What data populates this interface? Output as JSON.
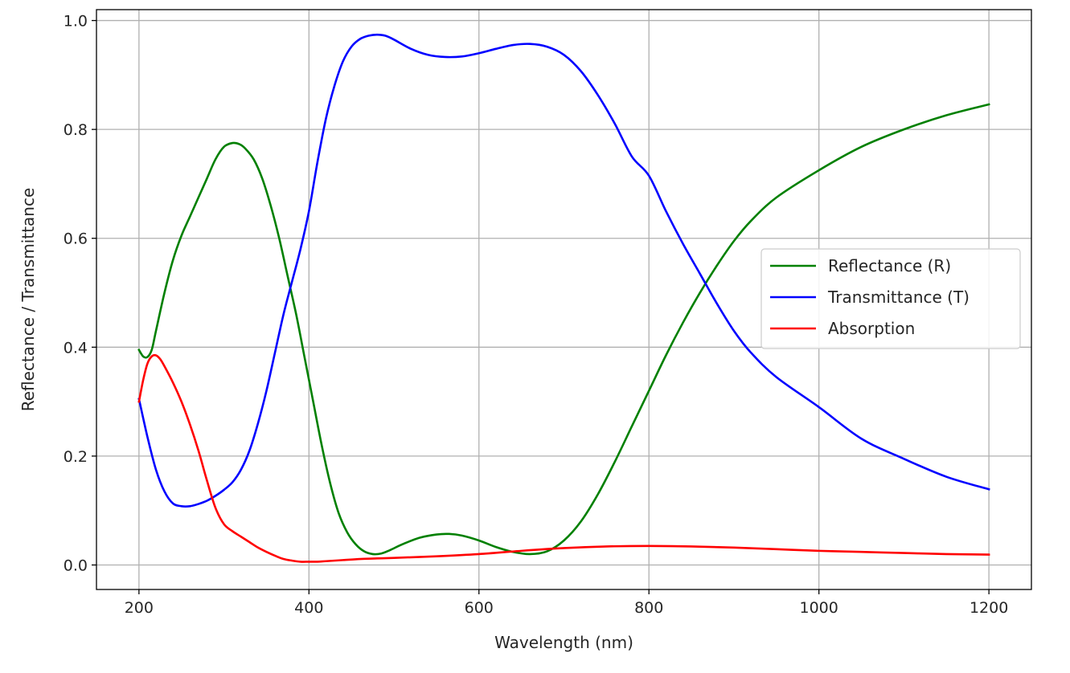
{
  "chart_data": {
    "type": "line",
    "xlabel": "Wavelength (nm)",
    "ylabel": "Reflectance / Transmittance",
    "xlim": [
      150,
      1250
    ],
    "ylim": [
      -0.045,
      1.02
    ],
    "xticks": [
      200,
      400,
      600,
      800,
      1000,
      1200
    ],
    "xtick_labels": [
      "200",
      "400",
      "600",
      "800",
      "1000",
      "1200"
    ],
    "yticks": [
      0.0,
      0.2,
      0.4,
      0.6,
      0.8,
      1.0
    ],
    "ytick_labels": [
      "0.0",
      "0.2",
      "0.4",
      "0.6",
      "0.8",
      "1.0"
    ],
    "grid": true,
    "legend_position": "center-right",
    "series": [
      {
        "name": "Reflectance (R)",
        "color": "#008000",
        "x": [
          200,
          205,
          210,
          215,
          220,
          230,
          240,
          250,
          260,
          270,
          280,
          290,
          300,
          310,
          318,
          325,
          335,
          345,
          355,
          365,
          375,
          385,
          395,
          405,
          415,
          425,
          435,
          445,
          455,
          465,
          475,
          485,
          495,
          510,
          530,
          550,
          565,
          580,
          600,
          620,
          640,
          660,
          680,
          700,
          720,
          740,
          760,
          780,
          800,
          820,
          840,
          860,
          880,
          900,
          920,
          950,
          1000,
          1050,
          1100,
          1150,
          1200
        ],
        "y": [
          0.395,
          0.383,
          0.382,
          0.395,
          0.43,
          0.5,
          0.56,
          0.605,
          0.64,
          0.675,
          0.71,
          0.745,
          0.768,
          0.775,
          0.773,
          0.765,
          0.745,
          0.71,
          0.66,
          0.6,
          0.53,
          0.46,
          0.38,
          0.3,
          0.22,
          0.15,
          0.095,
          0.06,
          0.038,
          0.025,
          0.02,
          0.021,
          0.027,
          0.038,
          0.05,
          0.056,
          0.057,
          0.054,
          0.045,
          0.033,
          0.024,
          0.02,
          0.025,
          0.045,
          0.08,
          0.13,
          0.19,
          0.255,
          0.32,
          0.385,
          0.445,
          0.5,
          0.55,
          0.595,
          0.632,
          0.675,
          0.725,
          0.768,
          0.8,
          0.826,
          0.846
        ]
      },
      {
        "name": "Transmittance (T)",
        "color": "#0000ff",
        "x": [
          200,
          210,
          220,
          230,
          240,
          250,
          260,
          270,
          280,
          290,
          300,
          310,
          320,
          330,
          340,
          350,
          360,
          370,
          380,
          390,
          400,
          410,
          420,
          430,
          440,
          450,
          460,
          470,
          480,
          490,
          500,
          520,
          540,
          560,
          580,
          600,
          620,
          640,
          660,
          680,
          700,
          720,
          740,
          760,
          780,
          800,
          820,
          840,
          860,
          880,
          900,
          920,
          950,
          1000,
          1050,
          1100,
          1150,
          1200
        ],
        "y": [
          0.305,
          0.235,
          0.175,
          0.135,
          0.113,
          0.108,
          0.108,
          0.112,
          0.118,
          0.127,
          0.138,
          0.152,
          0.175,
          0.21,
          0.26,
          0.32,
          0.39,
          0.46,
          0.52,
          0.58,
          0.65,
          0.74,
          0.82,
          0.88,
          0.925,
          0.952,
          0.966,
          0.972,
          0.974,
          0.972,
          0.965,
          0.948,
          0.937,
          0.933,
          0.934,
          0.94,
          0.948,
          0.955,
          0.957,
          0.952,
          0.937,
          0.907,
          0.863,
          0.81,
          0.75,
          0.715,
          0.65,
          0.59,
          0.535,
          0.48,
          0.43,
          0.39,
          0.345,
          0.29,
          0.232,
          0.195,
          0.162,
          0.139
        ]
      },
      {
        "name": "Absorption",
        "color": "#ff0000",
        "x": [
          200,
          205,
          210,
          215,
          220,
          225,
          230,
          240,
          250,
          260,
          270,
          280,
          290,
          300,
          310,
          320,
          330,
          340,
          350,
          360,
          370,
          380,
          390,
          400,
          410,
          420,
          440,
          460,
          480,
          500,
          550,
          600,
          650,
          700,
          750,
          800,
          850,
          900,
          950,
          1000,
          1050,
          1100,
          1150,
          1200
        ],
        "y": [
          0.3,
          0.34,
          0.37,
          0.383,
          0.385,
          0.378,
          0.365,
          0.335,
          0.3,
          0.258,
          0.21,
          0.155,
          0.105,
          0.075,
          0.062,
          0.052,
          0.042,
          0.032,
          0.024,
          0.017,
          0.011,
          0.008,
          0.006,
          0.006,
          0.006,
          0.007,
          0.009,
          0.011,
          0.012,
          0.013,
          0.016,
          0.02,
          0.026,
          0.031,
          0.034,
          0.035,
          0.034,
          0.032,
          0.029,
          0.026,
          0.024,
          0.022,
          0.02,
          0.019
        ]
      }
    ]
  }
}
